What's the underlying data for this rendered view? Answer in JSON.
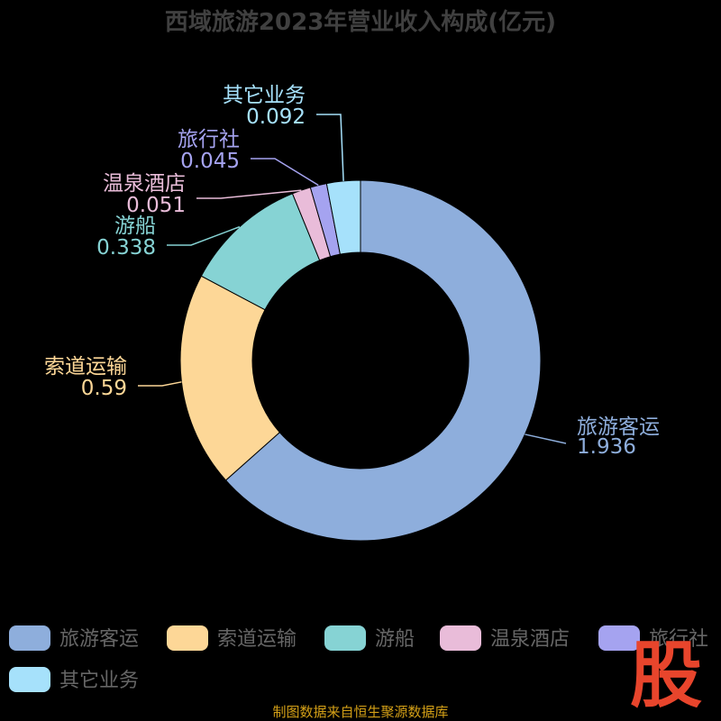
{
  "chart_data": {
    "type": "pie",
    "title": "西域旅游2023年营业收入构成(亿元)",
    "donut": true,
    "categories": [
      "旅游客运",
      "索道运输",
      "游船",
      "温泉酒店",
      "旅行社",
      "其它业务"
    ],
    "values": [
      1.936,
      0.59,
      0.338,
      0.051,
      0.045,
      0.092
    ],
    "value_labels": [
      "1.936",
      "0.59",
      "0.338",
      "0.051",
      "0.045",
      "0.092"
    ],
    "colors": [
      "#8eaedc",
      "#fdd797",
      "#86d3d4",
      "#e9bcd9",
      "#a5a3f0",
      "#a6e1fb"
    ],
    "legend": {
      "placement": "bottom",
      "entries": [
        "旅游客运",
        "索道运输",
        "游船",
        "温泉酒店",
        "旅行社",
        "其它业务"
      ]
    }
  },
  "footer": {
    "source": "制图数据来自恒生聚源数据库",
    "color": "#d4a017"
  },
  "watermark": {
    "text": "股",
    "color": "#e8452c"
  },
  "colors": {
    "background": "#000000",
    "title": "#404040",
    "legend_text": "#666666"
  }
}
